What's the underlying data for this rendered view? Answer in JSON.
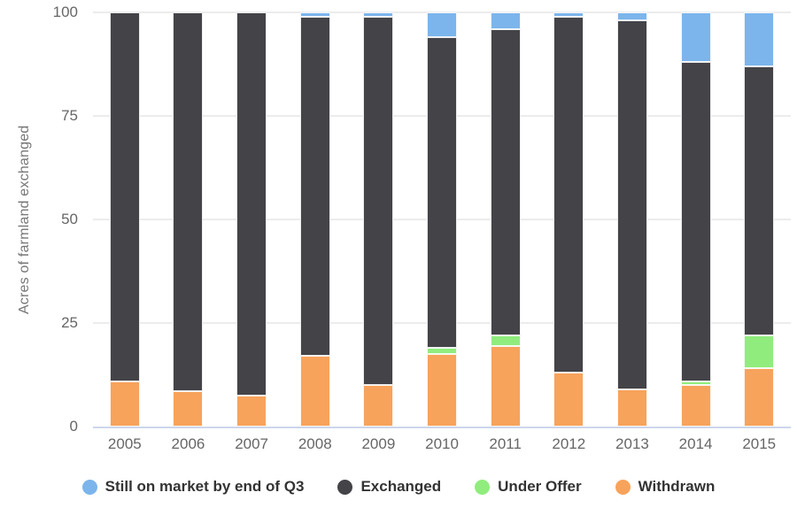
{
  "chart_data": {
    "type": "bar",
    "stacked": true,
    "percent_stack": true,
    "title": "",
    "xlabel": "",
    "ylabel": "Acres of farmland exchanged",
    "ylim": [
      0,
      100
    ],
    "yticks": [
      0,
      25,
      50,
      75,
      100
    ],
    "grid": true,
    "legend_position": "bottom",
    "axis_line_color": "#ccd6eb",
    "grid_color": "#ececec",
    "categories": [
      "2005",
      "2006",
      "2007",
      "2008",
      "2009",
      "2010",
      "2011",
      "2012",
      "2013",
      "2014",
      "2015"
    ],
    "series": [
      {
        "name": "Withdrawn",
        "color": "#f7a35c",
        "values": [
          11,
          8.5,
          7.5,
          17,
          10,
          17.5,
          19.5,
          13,
          9,
          10,
          14
        ]
      },
      {
        "name": "Under Offer",
        "color": "#90ed7d",
        "values": [
          0,
          0,
          0,
          0,
          0,
          1.5,
          2.5,
          0,
          0,
          1,
          8
        ]
      },
      {
        "name": "Exchanged",
        "color": "#434348",
        "values": [
          89,
          91.5,
          92.5,
          82,
          89,
          75,
          74,
          86,
          89,
          77,
          65
        ]
      },
      {
        "name": "Still on market by end of Q3",
        "color": "#7cb5ec",
        "values": [
          0,
          0,
          0,
          1,
          1,
          6,
          4,
          1,
          2,
          12,
          13
        ]
      }
    ],
    "stack_order": "bottom-to-top",
    "legend_order": [
      "Still on market by end of Q3",
      "Exchanged",
      "Under Offer",
      "Withdrawn"
    ]
  }
}
